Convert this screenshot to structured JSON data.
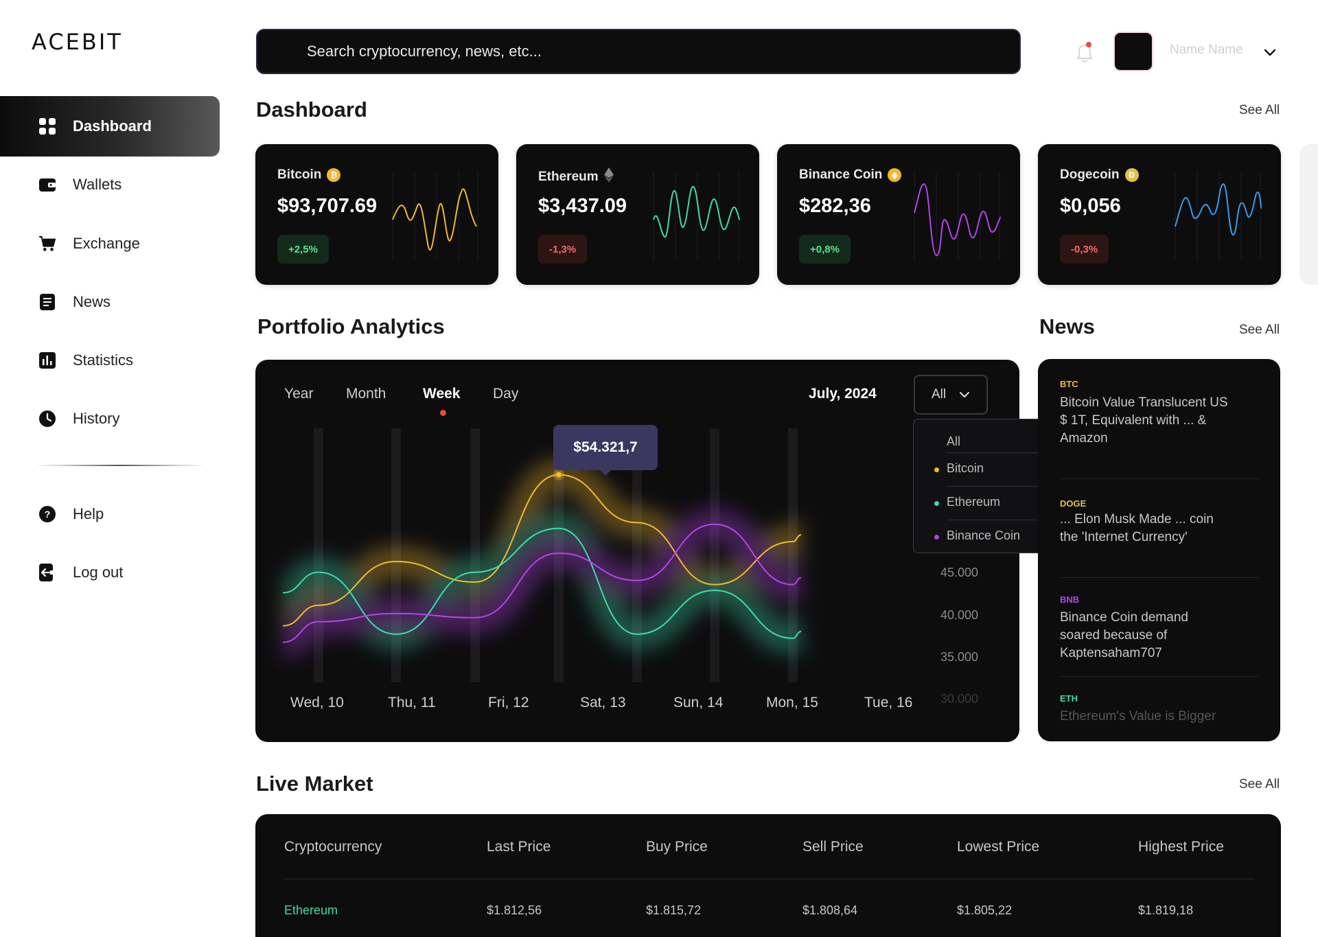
{
  "brand": {
    "logo": "ACEBIT"
  },
  "sidebar": {
    "items": [
      {
        "label": "Dashboard",
        "icon": "dashboard-icon",
        "active": true
      },
      {
        "label": "Wallets",
        "icon": "wallet-icon"
      },
      {
        "label": "Exchange",
        "icon": "cart-icon"
      },
      {
        "label": "News",
        "icon": "news-icon"
      },
      {
        "label": "Statistics",
        "icon": "statistics-icon"
      },
      {
        "label": "History",
        "icon": "clock-icon"
      }
    ],
    "bottom": [
      {
        "label": "Help",
        "icon": "help-icon"
      },
      {
        "label": "Log out",
        "icon": "logout-icon"
      }
    ]
  },
  "header": {
    "search_placeholder": "Search cryptocurrency, news, etc...",
    "user_name": "Name Name",
    "notification_dot_color": "#e84a3c"
  },
  "dashboard": {
    "title": "Dashboard",
    "see_all": "See All",
    "coins": [
      {
        "name": "Bitcoin",
        "price": "$93,707.69",
        "change": "+2,5%",
        "trend": "up",
        "color": "#f2b92e",
        "icon": "bitcoin-icon"
      },
      {
        "name": "Ethereum",
        "price": "$3,437.09",
        "change": "-1,3%",
        "trend": "down",
        "color": "#3ddcaa",
        "icon": "ethereum-icon"
      },
      {
        "name": "Binance Coin",
        "price": "$282,36",
        "change": "+0,8%",
        "trend": "up",
        "color": "#b544e8",
        "icon": "binance-icon"
      },
      {
        "name": "Dogecoin",
        "price": "$0,056",
        "change": "-0,3%",
        "trend": "down",
        "color": "#3a9be8",
        "icon": "dogecoin-icon"
      }
    ]
  },
  "portfolio": {
    "title": "Portfolio Analytics",
    "tabs": [
      "Year",
      "Month",
      "Week",
      "Day"
    ],
    "active_tab": "Week",
    "month": "July, 2024",
    "filter": {
      "selected": "All",
      "options": [
        {
          "label": "All"
        },
        {
          "label": "Bitcoin",
          "color": "#f2b92e"
        },
        {
          "label": "Ethereum",
          "color": "#3ddcaa"
        },
        {
          "label": "Binance Coin",
          "color": "#b544e8"
        }
      ]
    },
    "tooltip": "$54.321,7"
  },
  "chart_data": {
    "type": "line",
    "categories": [
      "Wed, 10",
      "Thu, 11",
      "Fri, 12",
      "Sat, 13",
      "Sun, 14",
      "Mon, 15",
      "Tue, 16"
    ],
    "y_ticks": [
      "45.000",
      "40.000",
      "35.000",
      "30.000"
    ],
    "ylim": [
      30000,
      60000
    ],
    "grid": true,
    "series": [
      {
        "name": "Bitcoin",
        "color": "#f2b92e",
        "values": [
          38500,
          43800,
          41300,
          54300,
          48500,
          41000,
          46200
        ]
      },
      {
        "name": "Ethereum",
        "color": "#3ddcaa",
        "values": [
          42500,
          35000,
          42500,
          47800,
          35000,
          40300,
          34500
        ]
      },
      {
        "name": "Binance Coin",
        "color": "#b544e8",
        "values": [
          36500,
          37500,
          37000,
          44800,
          41500,
          48300,
          41000
        ]
      }
    ]
  },
  "news": {
    "title": "News",
    "see_all": "See All",
    "items": [
      {
        "tag": "BTC",
        "tag_color": "#f2b92e",
        "text": "Bitcoin Value Translucent US $ 1T, Equivalent with ... & Amazon"
      },
      {
        "tag": "DOGE",
        "tag_color": "#e2c14a",
        "text": "... Elon Musk Made ... coin the 'Internet Currency'"
      },
      {
        "tag": "BNB",
        "tag_color": "#b544e8",
        "text": "Binance Coin demand soared because of Kaptensaham707"
      },
      {
        "tag": "ETH",
        "tag_color": "#3ddcaa",
        "text": "Ethereum's Value is Bigger"
      }
    ]
  },
  "market": {
    "title": "Live Market",
    "see_all": "See All",
    "columns": [
      "Cryptocurrency",
      "Last Price",
      "Buy Price",
      "Sell Price",
      "Lowest Price",
      "Highest Price"
    ],
    "rows": [
      {
        "name": "Ethereum",
        "name_color": "#3ddcaa",
        "cells": [
          "$1.812,56",
          "$1.815,72",
          "$1.808,64",
          "$1.805,22",
          "$1.819,18"
        ]
      }
    ]
  }
}
